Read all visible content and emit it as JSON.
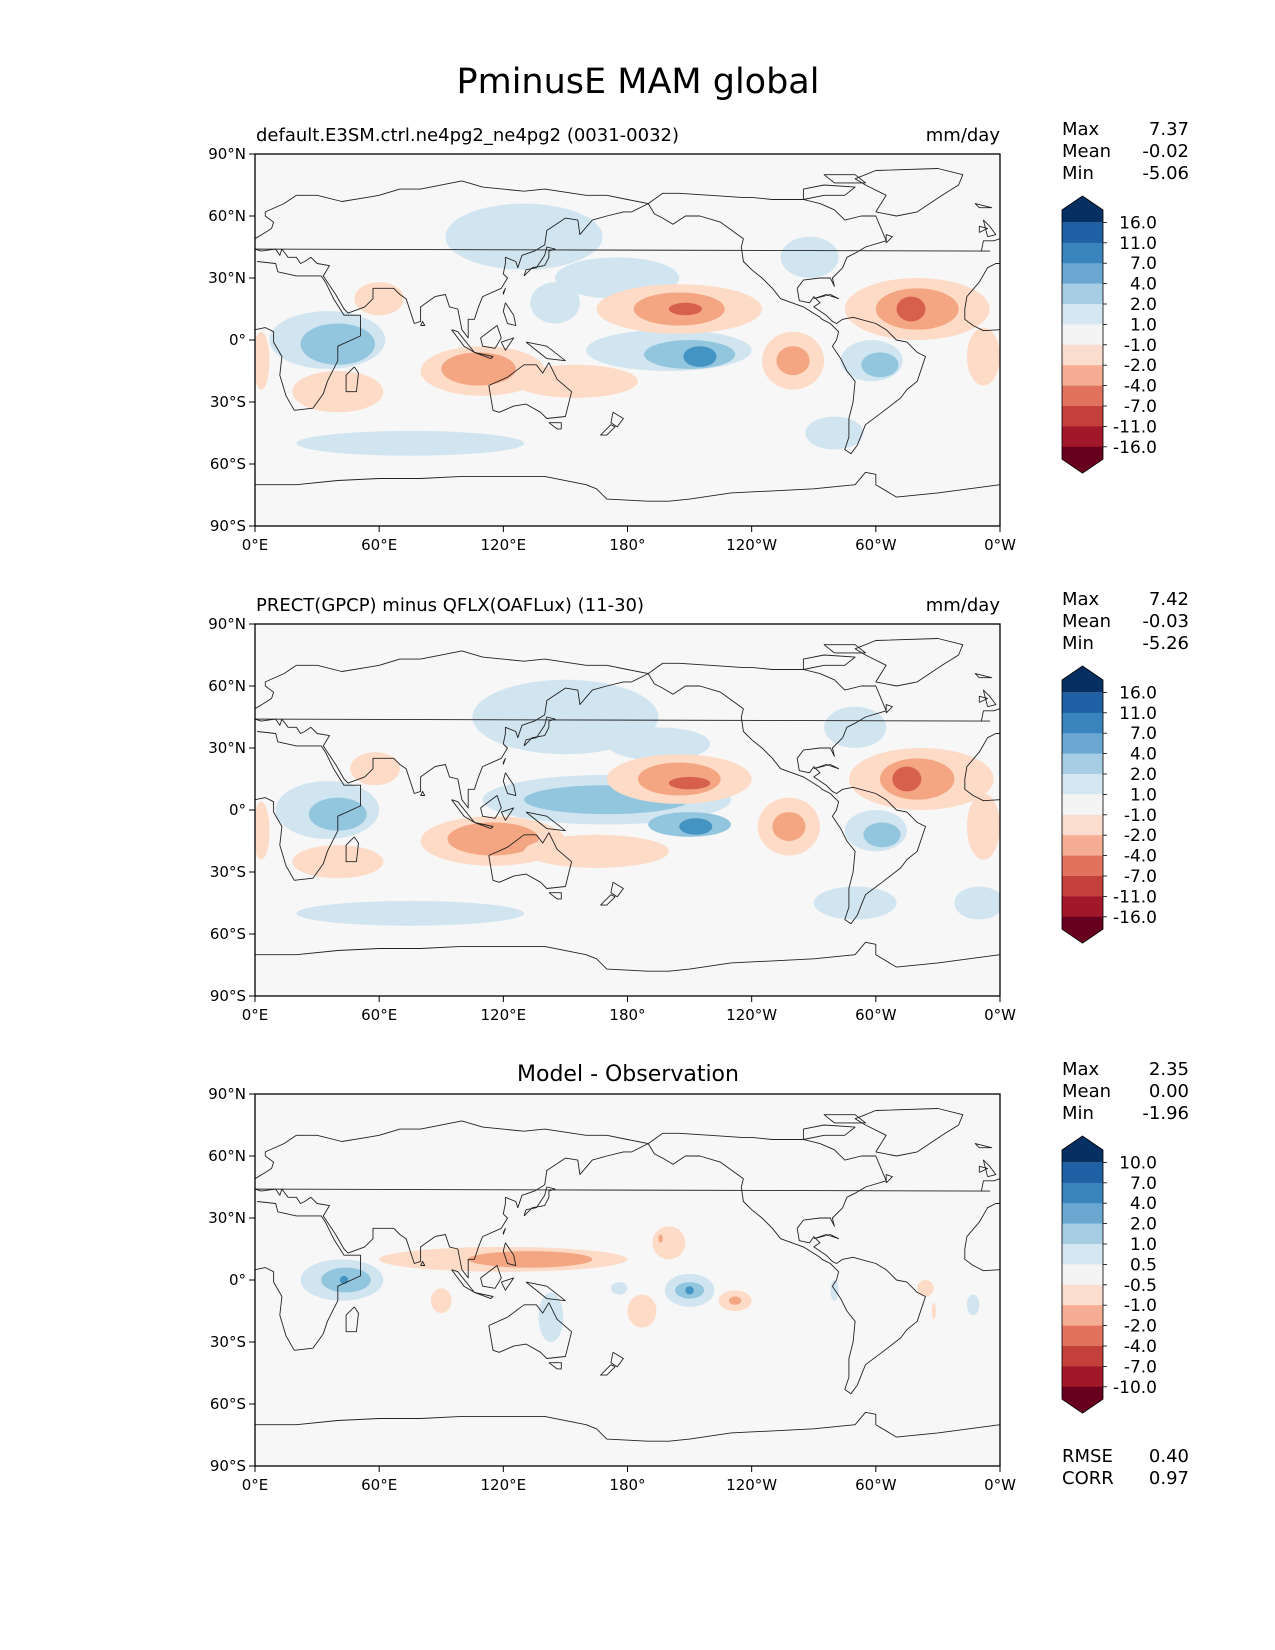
{
  "title": "PminusE MAM global",
  "stats_labels": {
    "max": "Max",
    "mean": "Mean",
    "min": "Min",
    "rmse": "RMSE",
    "corr": "CORR"
  },
  "x_ticks": [
    "0°E",
    "60°E",
    "120°E",
    "180°",
    "120°W",
    "60°W",
    "0°W"
  ],
  "y_ticks": [
    "90°N",
    "60°N",
    "30°N",
    "0°",
    "30°S",
    "60°S",
    "90°S"
  ],
  "palette": [
    "#053061",
    "#2166ac",
    "#4393c3",
    "#92c5de",
    "#d1e5f0",
    "#f7f7f7",
    "#fddbc7",
    "#f4a582",
    "#d6604d",
    "#b2182b",
    "#67001f"
  ],
  "colorbar_palette": [
    "#053061",
    "#1f5fa4",
    "#3a84be",
    "#6aa8d2",
    "#a6cde4",
    "#d5e7f1",
    "#f4f4f4",
    "#fbddcf",
    "#f5ae93",
    "#e1735e",
    "#c4403a",
    "#a2172a",
    "#67001f"
  ],
  "panels": [
    {
      "id": "model",
      "left_title": "default.E3SM.ctrl.ne4pg2_ne4pg2 (0031-0032)",
      "center_title": "",
      "units": "mm/day",
      "stats": {
        "max": "7.37",
        "mean": "-0.02",
        "min": "-5.06"
      },
      "colorbar_levels": [
        "16.0",
        "11.0",
        "7.0",
        "4.0",
        "2.0",
        "1.0",
        "-1.0",
        "-2.0",
        "-4.0",
        "-7.0",
        "-11.0",
        "-16.0"
      ],
      "features": [
        {
          "lon": 130,
          "lat": 50,
          "rlon": 38,
          "rlat": 16,
          "level": 4
        },
        {
          "lon": 175,
          "lat": 30,
          "rlon": 30,
          "rlat": 10,
          "level": 4
        },
        {
          "lon": 268,
          "lat": 40,
          "rlon": 14,
          "rlat": 10,
          "level": 4
        },
        {
          "lon": 145,
          "lat": 18,
          "rlon": 12,
          "rlat": 10,
          "level": 4
        },
        {
          "lon": 200,
          "lat": -5,
          "rlon": 40,
          "rlat": 10,
          "level": 4
        },
        {
          "lon": 210,
          "lat": -7,
          "rlon": 22,
          "rlat": 7,
          "level": 3
        },
        {
          "lon": 215,
          "lat": -8,
          "rlon": 8,
          "rlat": 5,
          "level": 2
        },
        {
          "lon": 35,
          "lat": 0,
          "rlon": 28,
          "rlat": 14,
          "level": 4
        },
        {
          "lon": 40,
          "lat": -2,
          "rlon": 18,
          "rlat": 10,
          "level": 3
        },
        {
          "lon": 298,
          "lat": -10,
          "rlon": 15,
          "rlat": 10,
          "level": 4
        },
        {
          "lon": 302,
          "lat": -12,
          "rlon": 9,
          "rlat": 6,
          "level": 3
        },
        {
          "lon": 75,
          "lat": -50,
          "rlon": 55,
          "rlat": 6,
          "level": 4
        },
        {
          "lon": 280,
          "lat": -45,
          "rlon": 14,
          "rlat": 8,
          "level": 4
        },
        {
          "lon": 205,
          "lat": 15,
          "rlon": 40,
          "rlat": 12,
          "level": 6
        },
        {
          "lon": 205,
          "lat": 15,
          "rlon": 22,
          "rlat": 8,
          "level": 7
        },
        {
          "lon": 208,
          "lat": 15,
          "rlon": 8,
          "rlat": 3,
          "level": 8
        },
        {
          "lon": 320,
          "lat": 15,
          "rlon": 35,
          "rlat": 15,
          "level": 6
        },
        {
          "lon": 320,
          "lat": 15,
          "rlon": 20,
          "rlat": 10,
          "level": 7
        },
        {
          "lon": 317,
          "lat": 15,
          "rlon": 7,
          "rlat": 6,
          "level": 8
        },
        {
          "lon": 110,
          "lat": -15,
          "rlon": 30,
          "rlat": 12,
          "level": 6
        },
        {
          "lon": 108,
          "lat": -14,
          "rlon": 18,
          "rlat": 8,
          "level": 7
        },
        {
          "lon": 260,
          "lat": -10,
          "rlon": 15,
          "rlat": 14,
          "level": 6
        },
        {
          "lon": 260,
          "lat": -10,
          "rlon": 8,
          "rlat": 7,
          "level": 7
        },
        {
          "lon": 60,
          "lat": 20,
          "rlon": 12,
          "rlat": 8,
          "level": 6
        },
        {
          "lon": 40,
          "lat": -25,
          "rlon": 22,
          "rlat": 10,
          "level": 6
        },
        {
          "lon": 352,
          "lat": -8,
          "rlon": 8,
          "rlat": 14,
          "level": 6
        },
        {
          "lon": 3,
          "lat": -10,
          "rlon": 4,
          "rlat": 14,
          "level": 6
        },
        {
          "lon": 155,
          "lat": -20,
          "rlon": 30,
          "rlat": 8,
          "level": 6
        }
      ]
    },
    {
      "id": "obs",
      "left_title": "PRECT(GPCP) minus QFLX(OAFLux) (11-30)",
      "center_title": "",
      "units": "mm/day",
      "stats": {
        "max": "7.42",
        "mean": "-0.03",
        "min": "-5.26"
      },
      "colorbar_levels": [
        "16.0",
        "11.0",
        "7.0",
        "4.0",
        "2.0",
        "1.0",
        "-1.0",
        "-2.0",
        "-4.0",
        "-7.0",
        "-11.0",
        "-16.0"
      ],
      "features": [
        {
          "lon": 150,
          "lat": 45,
          "rlon": 45,
          "rlat": 18,
          "level": 4
        },
        {
          "lon": 195,
          "lat": 32,
          "rlon": 25,
          "rlat": 8,
          "level": 4
        },
        {
          "lon": 290,
          "lat": 40,
          "rlon": 15,
          "rlat": 10,
          "level": 4
        },
        {
          "lon": 170,
          "lat": 5,
          "rlon": 60,
          "rlat": 12,
          "level": 4
        },
        {
          "lon": 170,
          "lat": 5,
          "rlon": 40,
          "rlat": 7,
          "level": 3
        },
        {
          "lon": 210,
          "lat": -7,
          "rlon": 20,
          "rlat": 6,
          "level": 3
        },
        {
          "lon": 213,
          "lat": -8,
          "rlon": 8,
          "rlat": 4,
          "level": 2
        },
        {
          "lon": 35,
          "lat": 0,
          "rlon": 25,
          "rlat": 14,
          "level": 4
        },
        {
          "lon": 40,
          "lat": -2,
          "rlon": 14,
          "rlat": 8,
          "level": 3
        },
        {
          "lon": 300,
          "lat": -10,
          "rlon": 15,
          "rlat": 10,
          "level": 4
        },
        {
          "lon": 303,
          "lat": -12,
          "rlon": 9,
          "rlat": 6,
          "level": 3
        },
        {
          "lon": 75,
          "lat": -50,
          "rlon": 55,
          "rlat": 6,
          "level": 4
        },
        {
          "lon": 290,
          "lat": -45,
          "rlon": 20,
          "rlat": 8,
          "level": 4
        },
        {
          "lon": 350,
          "lat": -45,
          "rlon": 12,
          "rlat": 8,
          "level": 4
        },
        {
          "lon": 205,
          "lat": 15,
          "rlon": 35,
          "rlat": 12,
          "level": 6
        },
        {
          "lon": 205,
          "lat": 15,
          "rlon": 20,
          "rlat": 8,
          "level": 7
        },
        {
          "lon": 210,
          "lat": 13,
          "rlon": 10,
          "rlat": 3,
          "level": 8
        },
        {
          "lon": 322,
          "lat": 15,
          "rlon": 35,
          "rlat": 15,
          "level": 6
        },
        {
          "lon": 320,
          "lat": 15,
          "rlon": 18,
          "rlat": 10,
          "level": 7
        },
        {
          "lon": 315,
          "lat": 15,
          "rlon": 7,
          "rlat": 6,
          "level": 8
        },
        {
          "lon": 115,
          "lat": -15,
          "rlon": 35,
          "rlat": 12,
          "level": 6
        },
        {
          "lon": 115,
          "lat": -14,
          "rlon": 22,
          "rlat": 8,
          "level": 7
        },
        {
          "lon": 258,
          "lat": -8,
          "rlon": 15,
          "rlat": 14,
          "level": 6
        },
        {
          "lon": 258,
          "lat": -8,
          "rlon": 8,
          "rlat": 7,
          "level": 7
        },
        {
          "lon": 58,
          "lat": 20,
          "rlon": 12,
          "rlat": 8,
          "level": 6
        },
        {
          "lon": 40,
          "lat": -25,
          "rlon": 22,
          "rlat": 8,
          "level": 6
        },
        {
          "lon": 352,
          "lat": -8,
          "rlon": 8,
          "rlat": 16,
          "level": 6
        },
        {
          "lon": 3,
          "lat": -10,
          "rlon": 4,
          "rlat": 14,
          "level": 6
        },
        {
          "lon": 165,
          "lat": -20,
          "rlon": 35,
          "rlat": 8,
          "level": 6
        }
      ]
    },
    {
      "id": "diff",
      "left_title": "",
      "center_title": "Model - Observation",
      "units": "",
      "stats": {
        "max": "2.35",
        "mean": "0.00",
        "min": "-1.96"
      },
      "error_stats": {
        "rmse": "0.40",
        "corr": "0.97"
      },
      "colorbar_levels": [
        "10.0",
        "7.0",
        "4.0",
        "2.0",
        "1.0",
        "0.5",
        "-0.5",
        "-1.0",
        "-2.0",
        "-4.0",
        "-7.0",
        "-10.0"
      ],
      "features": [
        {
          "lon": 42,
          "lat": 0,
          "rlon": 20,
          "rlat": 10,
          "level": 4
        },
        {
          "lon": 44,
          "lat": 0,
          "rlon": 12,
          "rlat": 6,
          "level": 3
        },
        {
          "lon": 43,
          "lat": 0,
          "rlon": 2,
          "rlat": 2,
          "level": 2
        },
        {
          "lon": 210,
          "lat": -5,
          "rlon": 12,
          "rlat": 8,
          "level": 4
        },
        {
          "lon": 210,
          "lat": -5,
          "rlon": 7,
          "rlat": 4,
          "level": 3
        },
        {
          "lon": 210,
          "lat": -5,
          "rlon": 2,
          "rlat": 2,
          "level": 2
        },
        {
          "lon": 176,
          "lat": -4,
          "rlon": 4,
          "rlat": 3,
          "level": 4
        },
        {
          "lon": 143,
          "lat": -18,
          "rlon": 6,
          "rlat": 12,
          "level": 4
        },
        {
          "lon": 280,
          "lat": -5,
          "rlon": 2,
          "rlat": 5,
          "level": 4
        },
        {
          "lon": 347,
          "lat": -12,
          "rlon": 3,
          "rlat": 5,
          "level": 4
        },
        {
          "lon": 120,
          "lat": 10,
          "rlon": 60,
          "rlat": 6,
          "level": 6
        },
        {
          "lon": 133,
          "lat": 10,
          "rlon": 30,
          "rlat": 4,
          "level": 7
        },
        {
          "lon": 200,
          "lat": 18,
          "rlon": 8,
          "rlat": 8,
          "level": 6
        },
        {
          "lon": 196,
          "lat": 20,
          "rlon": 1,
          "rlat": 2,
          "level": 7
        },
        {
          "lon": 232,
          "lat": -10,
          "rlon": 8,
          "rlat": 5,
          "level": 6
        },
        {
          "lon": 232,
          "lat": -10,
          "rlon": 3,
          "rlat": 2,
          "level": 7
        },
        {
          "lon": 187,
          "lat": -15,
          "rlon": 7,
          "rlat": 8,
          "level": 6
        },
        {
          "lon": 90,
          "lat": -10,
          "rlon": 5,
          "rlat": 6,
          "level": 6
        },
        {
          "lon": 324,
          "lat": -4,
          "rlon": 4,
          "rlat": 4,
          "level": 6
        },
        {
          "lon": 328,
          "lat": -15,
          "rlon": 1,
          "rlat": 4,
          "level": 6
        }
      ]
    }
  ]
}
